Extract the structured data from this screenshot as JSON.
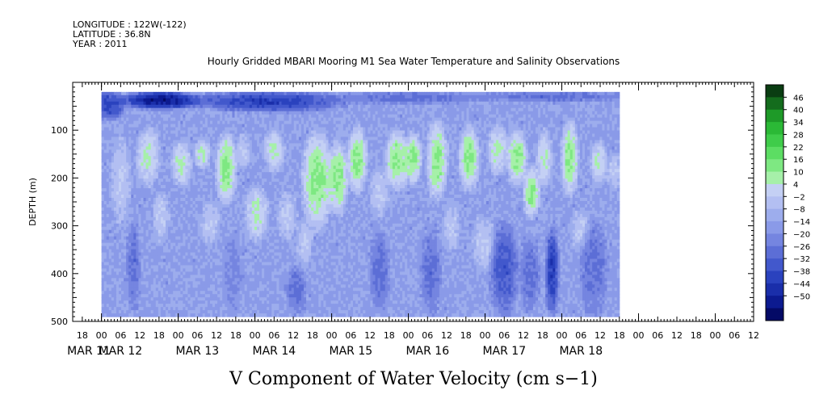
{
  "header": {
    "longitude": "LONGITUDE : 122W(-122)",
    "latitude": "LATITUDE : 36.8N",
    "year": "YEAR : 2011"
  },
  "chart_data": {
    "type": "heatmap",
    "title": "Hourly Gridded MBARI Mooring M1 Sea Water Temperature and Salinity Observations",
    "xlabel": "V Component of Water Velocity (cm s−1)",
    "ylabel": "DEPTH (m)",
    "y_axis": {
      "ticks": [
        100,
        200,
        300,
        400,
        500
      ],
      "range": [
        0,
        500
      ],
      "inverted": true
    },
    "x_axis": {
      "hour_ticks": [
        "18",
        "00",
        "06",
        "12",
        "18",
        "00",
        "06",
        "12",
        "18",
        "00",
        "06",
        "12",
        "18",
        "00",
        "06",
        "12",
        "18",
        "00",
        "06",
        "12",
        "18",
        "00",
        "06",
        "12",
        "18",
        "00",
        "06",
        "12",
        "18",
        "00",
        "06",
        "12",
        "18",
        "00",
        "06",
        "12"
      ],
      "date_labels": [
        "MAR 11",
        "MAR 12",
        "MAR 13",
        "MAR 14",
        "MAR 15",
        "MAR 16",
        "MAR 17",
        "MAR 18"
      ],
      "data_range_hours": [
        0,
        162
      ]
    },
    "depth_range_m": [
      20,
      490
    ],
    "colorbar": {
      "labels": [
        46,
        40,
        34,
        28,
        22,
        16,
        10,
        4,
        -2,
        -8,
        -14,
        -20,
        -26,
        -32,
        -38,
        -44,
        -50
      ],
      "colors": [
        "#0a3d12",
        "#146c1d",
        "#1e9a28",
        "#2bb936",
        "#3fcc4a",
        "#5cdd63",
        "#7ee882",
        "#a6f0a9",
        "#c4d0f4",
        "#b3bff2",
        "#9daded",
        "#8a9ae8",
        "#7585e0",
        "#5c6ed6",
        "#4258cc",
        "#2a42be",
        "#1a2eaa",
        "#0c1a90",
        "#040a66"
      ]
    },
    "regions": [
      {
        "t0": -2,
        "t1": 7,
        "z0": 20,
        "z1": 75,
        "v": -32
      },
      {
        "t0": 7,
        "t1": 30,
        "z0": 20,
        "z1": 55,
        "v": -44
      },
      {
        "t0": 30,
        "t1": 75,
        "z0": 20,
        "z1": 60,
        "v": -32
      },
      {
        "t0": 75,
        "t1": 120,
        "z0": 20,
        "z1": 45,
        "v": -20
      },
      {
        "t0": 120,
        "t1": 163,
        "z0": 20,
        "z1": 40,
        "v": -20
      },
      {
        "t0": 3,
        "t1": 9,
        "z0": 120,
        "z1": 290,
        "v": 4
      },
      {
        "t0": 11,
        "t1": 18,
        "z0": 100,
        "z1": 210,
        "v": 10
      },
      {
        "t0": 16,
        "t1": 21,
        "z0": 230,
        "z1": 330,
        "v": 4
      },
      {
        "t0": 22,
        "t1": 28,
        "z0": 125,
        "z1": 215,
        "v": 10
      },
      {
        "t0": 29,
        "t1": 34,
        "z0": 120,
        "z1": 180,
        "v": 10
      },
      {
        "t0": 31,
        "t1": 37,
        "z0": 250,
        "z1": 340,
        "v": 4
      },
      {
        "t0": 36,
        "t1": 42,
        "z0": 110,
        "z1": 250,
        "v": 16
      },
      {
        "t0": 42,
        "t1": 47,
        "z0": 110,
        "z1": 175,
        "v": 4
      },
      {
        "t0": 45,
        "t1": 52,
        "z0": 220,
        "z1": 330,
        "v": 10
      },
      {
        "t0": 51,
        "t1": 57,
        "z0": 100,
        "z1": 185,
        "v": 10
      },
      {
        "t0": 55,
        "t1": 61,
        "z0": 230,
        "z1": 330,
        "v": 4
      },
      {
        "t0": 61,
        "t1": 66,
        "z0": 290,
        "z1": 380,
        "v": 4
      },
      {
        "t0": 63,
        "t1": 72,
        "z0": 110,
        "z1": 300,
        "v": 16
      },
      {
        "t0": 71,
        "t1": 77,
        "z0": 130,
        "z1": 270,
        "v": 16
      },
      {
        "t0": 77,
        "t1": 83,
        "z0": 100,
        "z1": 225,
        "v": 16
      },
      {
        "t0": 84,
        "t1": 90,
        "z0": 180,
        "z1": 280,
        "v": 4
      },
      {
        "t0": 89,
        "t1": 96,
        "z0": 105,
        "z1": 220,
        "v": 16
      },
      {
        "t0": 95,
        "t1": 100,
        "z0": 110,
        "z1": 210,
        "v": 16
      },
      {
        "t0": 102,
        "t1": 108,
        "z0": 85,
        "z1": 240,
        "v": 16
      },
      {
        "t0": 107,
        "t1": 112,
        "z0": 255,
        "z1": 350,
        "v": 4
      },
      {
        "t0": 112,
        "t1": 118,
        "z0": 95,
        "z1": 220,
        "v": 16
      },
      {
        "t0": 116,
        "t1": 123,
        "z0": 285,
        "z1": 390,
        "v": 4
      },
      {
        "t0": 121,
        "t1": 127,
        "z0": 90,
        "z1": 190,
        "v": 10
      },
      {
        "t0": 127,
        "t1": 133,
        "z0": 105,
        "z1": 210,
        "v": 16
      },
      {
        "t0": 132,
        "t1": 137,
        "z0": 180,
        "z1": 280,
        "v": 16
      },
      {
        "t0": 136,
        "t1": 141,
        "z0": 105,
        "z1": 215,
        "v": 10
      },
      {
        "t0": 139,
        "t1": 143,
        "z0": 310,
        "z1": 480,
        "v": -32
      },
      {
        "t0": 144,
        "t1": 149,
        "z0": 85,
        "z1": 230,
        "v": 16
      },
      {
        "t0": 147,
        "t1": 153,
        "z0": 270,
        "z1": 350,
        "v": 4
      },
      {
        "t0": 153,
        "t1": 158,
        "z0": 125,
        "z1": 210,
        "v": 10
      },
      {
        "t0": 158,
        "t1": 163,
        "z0": 150,
        "z1": 220,
        "v": 4
      },
      {
        "t0": 8,
        "t1": 12,
        "z0": 300,
        "z1": 470,
        "v": -20
      },
      {
        "t0": 38,
        "t1": 44,
        "z0": 320,
        "z1": 480,
        "v": -14
      },
      {
        "t0": 58,
        "t1": 64,
        "z0": 390,
        "z1": 480,
        "v": -20
      },
      {
        "t0": 84,
        "t1": 90,
        "z0": 320,
        "z1": 470,
        "v": -20
      },
      {
        "t0": 100,
        "t1": 106,
        "z0": 310,
        "z1": 480,
        "v": -20
      },
      {
        "t0": 122,
        "t1": 130,
        "z0": 300,
        "z1": 480,
        "v": -26
      },
      {
        "t0": 131,
        "t1": 137,
        "z0": 330,
        "z1": 470,
        "v": -20
      },
      {
        "t0": 150,
        "t1": 158,
        "z0": 300,
        "z1": 480,
        "v": -20
      }
    ]
  }
}
